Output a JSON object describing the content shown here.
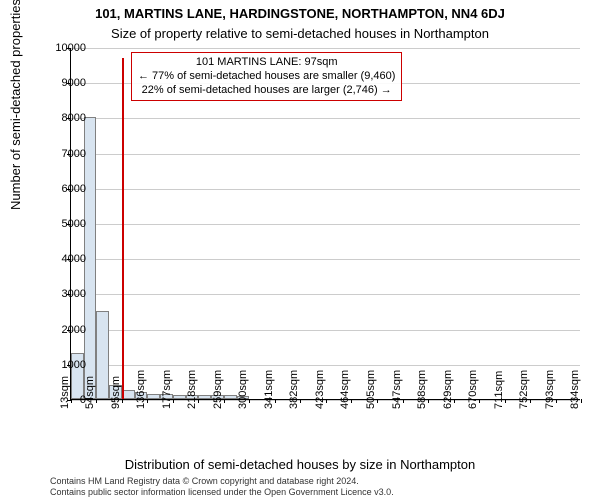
{
  "header": {
    "title1": "101, MARTINS LANE, HARDINGSTONE, NORTHAMPTON, NN4 6DJ",
    "title2": "Size of property relative to semi-detached houses in Northampton",
    "title1_fontsize": 13,
    "title2_fontsize": 13,
    "title1_fontweight": "bold"
  },
  "chart": {
    "type": "histogram",
    "ylabel": "Number of semi-detached properties",
    "xlabel": "Distribution of semi-detached houses by size in Northampton",
    "label_fontsize": 13,
    "background_color": "#ffffff",
    "grid_color": "#cccccc",
    "axis_color": "#000000",
    "ylim": [
      0,
      10000
    ],
    "ytick_step": 1000,
    "yticks": [
      0,
      1000,
      2000,
      3000,
      4000,
      5000,
      6000,
      7000,
      8000,
      9000,
      10000
    ],
    "xticks": [
      13,
      54,
      95,
      136,
      177,
      218,
      259,
      300,
      341,
      382,
      423,
      464,
      505,
      547,
      588,
      629,
      670,
      711,
      752,
      793,
      834
    ],
    "xtick_unit": "sqm",
    "tick_fontsize": 11,
    "bars": {
      "bin_start": 13,
      "bin_width": 20.5,
      "values": [
        1300,
        8000,
        2500,
        400,
        250,
        200,
        150,
        130,
        120,
        120,
        110,
        100,
        100,
        90,
        0,
        0,
        0,
        0,
        0,
        0,
        0,
        0,
        0,
        0,
        0,
        0,
        0,
        0,
        0,
        0,
        0,
        0,
        0,
        0,
        0,
        0,
        0,
        0,
        0,
        0
      ],
      "fill_color": "#d8e4f0",
      "border_color": "#808080",
      "border_width": 0.5
    },
    "marker": {
      "x": 97,
      "line_color": "#cc0000",
      "line_width": 2,
      "height_ratio": 0.97
    },
    "callout": {
      "lines": [
        "101 MARTINS LANE: 97sqm",
        "← 77% of semi-detached houses are smaller (9,460)",
        "22% of semi-detached houses are larger (2,746) →"
      ],
      "border_color": "#cc0000",
      "fontsize": 11
    }
  },
  "footer": {
    "line1": "Contains HM Land Registry data © Crown copyright and database right 2024.",
    "line2": "Contains public sector information licensed under the Open Government Licence v3.0.",
    "fontsize": 9
  }
}
